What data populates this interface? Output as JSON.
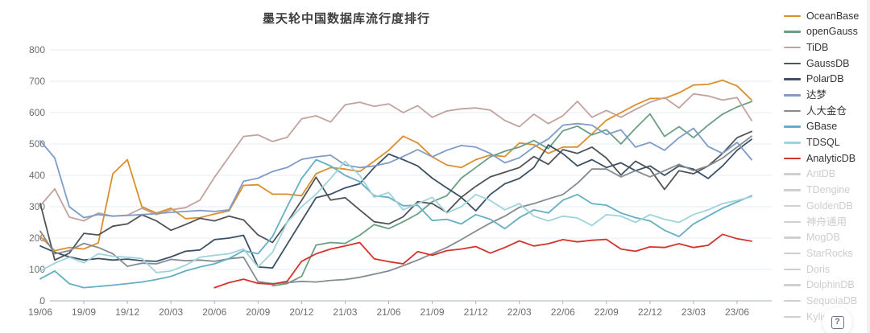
{
  "help_button": {
    "label": "?"
  },
  "legend": {
    "items": [
      {
        "label": "OceanBase",
        "color": "#D98F2D",
        "active": true
      },
      {
        "label": "openGauss",
        "color": "#69A083",
        "active": true
      },
      {
        "label": "TiDB",
        "color": "#C2A29E",
        "active": true
      },
      {
        "label": "GaussDB",
        "color": "#505457",
        "active": true
      },
      {
        "label": "PolarDB",
        "color": "#3C5066",
        "active": true
      },
      {
        "label": "达梦",
        "color": "#7E9CC7",
        "active": true
      },
      {
        "label": "人大金仓",
        "color": "#848B92",
        "active": true
      },
      {
        "label": "GBase",
        "color": "#66AEC2",
        "active": true
      },
      {
        "label": "TDSQL",
        "color": "#9FD3DC",
        "active": true
      },
      {
        "label": "AnalyticDB",
        "color": "#D3342B",
        "active": true
      },
      {
        "label": "AntDB",
        "color": "#CFCFCF",
        "active": false
      },
      {
        "label": "TDengine",
        "color": "#CFCFCF",
        "active": false
      },
      {
        "label": "GoldenDB",
        "color": "#CFCFCF",
        "active": false
      },
      {
        "label": "神舟通用",
        "color": "#CFCFCF",
        "active": false
      },
      {
        "label": "MogDB",
        "color": "#CFCFCF",
        "active": false
      },
      {
        "label": "StarRocks",
        "color": "#CFCFCF",
        "active": false
      },
      {
        "label": "Doris",
        "color": "#CFCFCF",
        "active": false
      },
      {
        "label": "DolphinDB",
        "color": "#CFCFCF",
        "active": false
      },
      {
        "label": "SequoiaDB",
        "color": "#CFCFCF",
        "active": false
      },
      {
        "label": "Kyligence",
        "color": "#CFCFCF",
        "active": false
      }
    ]
  },
  "chart_data": {
    "type": "line",
    "title": "墨天轮中国数据库流行度排行",
    "xlabel": "",
    "ylabel": "",
    "ylim": [
      0,
      800
    ],
    "y_ticks": [
      0,
      100,
      200,
      300,
      400,
      500,
      600,
      700,
      800
    ],
    "grid": true,
    "legend_position": "right",
    "x": [
      "19/06",
      "19/07",
      "19/08",
      "19/09",
      "19/10",
      "19/11",
      "19/12",
      "20/01",
      "20/02",
      "20/03",
      "20/04",
      "20/05",
      "20/06",
      "20/07",
      "20/08",
      "20/09",
      "20/10",
      "20/11",
      "20/12",
      "21/01",
      "21/02",
      "21/03",
      "21/04",
      "21/05",
      "21/06",
      "21/07",
      "21/08",
      "21/09",
      "21/10",
      "21/11",
      "21/12",
      "22/01",
      "22/02",
      "22/03",
      "22/04",
      "22/05",
      "22/06",
      "22/07",
      "22/08",
      "22/09",
      "22/10",
      "22/11",
      "22/12",
      "23/01",
      "23/02",
      "23/03",
      "23/04",
      "23/05",
      "23/06",
      "23/07"
    ],
    "x_tick_labels": [
      "19/06",
      "19/09",
      "19/12",
      "20/03",
      "20/06",
      "20/09",
      "20/12",
      "21/03",
      "21/06",
      "21/09",
      "21/12",
      "22/03",
      "22/06",
      "22/09",
      "22/12",
      "23/03",
      "23/06"
    ],
    "series": [
      {
        "name": "OceanBase",
        "color": "#D98F2D",
        "values": [
          205,
          160,
          170,
          165,
          185,
          405,
          450,
          300,
          280,
          295,
          262,
          265,
          277,
          287,
          368,
          370,
          340,
          340,
          335,
          405,
          425,
          420,
          412,
          445,
          480,
          525,
          503,
          459,
          433,
          425,
          450,
          465,
          460,
          503,
          498,
          470,
          490,
          490,
          532,
          576,
          600,
          625,
          645,
          645,
          663,
          688,
          690,
          703,
          685,
          640
        ]
      },
      {
        "name": "openGauss",
        "color": "#69A083",
        "values": [
          null,
          null,
          null,
          null,
          null,
          null,
          null,
          null,
          null,
          null,
          null,
          null,
          null,
          null,
          null,
          null,
          48,
          55,
          78,
          178,
          186,
          183,
          209,
          243,
          230,
          252,
          277,
          316,
          335,
          391,
          425,
          459,
          477,
          490,
          511,
          485,
          542,
          557,
          529,
          545,
          500,
          550,
          596,
          524,
          555,
          520,
          560,
          595,
          618,
          635
        ]
      },
      {
        "name": "TiDB",
        "color": "#C2A29E",
        "values": [
          303,
          357,
          267,
          255,
          280,
          270,
          273,
          295,
          275,
          290,
          297,
          321,
          394,
          459,
          524,
          529,
          508,
          521,
          580,
          590,
          570,
          625,
          633,
          620,
          628,
          600,
          622,
          585,
          605,
          612,
          615,
          608,
          575,
          555,
          595,
          565,
          590,
          636,
          585,
          607,
          585,
          610,
          633,
          648,
          615,
          660,
          653,
          640,
          648,
          575
        ]
      },
      {
        "name": "GaussDB",
        "color": "#505457",
        "values": [
          310,
          130,
          152,
          215,
          210,
          238,
          245,
          274,
          255,
          225,
          243,
          263,
          255,
          270,
          258,
          210,
          186,
          250,
          320,
          394,
          321,
          329,
          290,
          252,
          245,
          268,
          316,
          310,
          282,
          330,
          365,
          395,
          410,
          425,
          460,
          435,
          482,
          470,
          490,
          455,
          401,
          445,
          420,
          355,
          415,
          405,
          430,
          470,
          520,
          540
        ]
      },
      {
        "name": "PolarDB",
        "color": "#3C5066",
        "values": [
          175,
          155,
          140,
          130,
          135,
          130,
          133,
          128,
          126,
          140,
          158,
          162,
          195,
          200,
          209,
          108,
          105,
          180,
          255,
          329,
          340,
          360,
          373,
          425,
          468,
          450,
          430,
          391,
          360,
          330,
          287,
          339,
          373,
          390,
          425,
          497,
          469,
          430,
          450,
          425,
          440,
          415,
          430,
          400,
          430,
          420,
          390,
          430,
          480,
          515
        ]
      },
      {
        "name": "达梦",
        "color": "#7E9CC7",
        "values": [
          510,
          455,
          300,
          265,
          275,
          270,
          272,
          275,
          278,
          282,
          285,
          288,
          285,
          290,
          381,
          391,
          412,
          425,
          451,
          459,
          464,
          433,
          425,
          430,
          440,
          460,
          482,
          459,
          480,
          495,
          490,
          470,
          440,
          456,
          490,
          516,
          560,
          565,
          560,
          530,
          545,
          490,
          505,
          480,
          520,
          550,
          492,
          470,
          505,
          450
        ]
      },
      {
        "name": "人大金仓",
        "color": "#848B92",
        "values": [
          222,
          150,
          160,
          183,
          170,
          150,
          110,
          120,
          118,
          132,
          128,
          130,
          126,
          134,
          139,
          61,
          55,
          58,
          62,
          60,
          65,
          68,
          75,
          85,
          95,
          112,
          130,
          150,
          170,
          195,
          222,
          248,
          270,
          298,
          310,
          325,
          339,
          375,
          420,
          420,
          395,
          415,
          395,
          415,
          435,
          415,
          430,
          455,
          490,
          525
        ]
      },
      {
        "name": "GBase",
        "color": "#66AEC2",
        "values": [
          70,
          95,
          55,
          42,
          46,
          50,
          55,
          60,
          68,
          78,
          95,
          108,
          118,
          135,
          160,
          150,
          205,
          300,
          390,
          450,
          430,
          400,
          380,
          335,
          330,
          303,
          305,
          256,
          260,
          245,
          275,
          260,
          230,
          265,
          290,
          280,
          321,
          339,
          310,
          305,
          280,
          265,
          255,
          225,
          205,
          245,
          270,
          295,
          315,
          335
        ]
      },
      {
        "name": "TDSQL",
        "color": "#9FD3DC",
        "values": [
          95,
          120,
          139,
          121,
          150,
          142,
          139,
          135,
          90,
          95,
          113,
          139,
          145,
          150,
          165,
          108,
          155,
          250,
          300,
          340,
          390,
          445,
          400,
          330,
          345,
          290,
          310,
          330,
          280,
          300,
          339,
          320,
          290,
          310,
          270,
          255,
          270,
          264,
          240,
          275,
          270,
          250,
          275,
          260,
          250,
          275,
          290,
          310,
          320,
          332
        ]
      },
      {
        "name": "AnalyticDB",
        "color": "#D3342B",
        "values": [
          null,
          null,
          null,
          null,
          null,
          null,
          null,
          null,
          null,
          null,
          null,
          null,
          42,
          58,
          69,
          56,
          53,
          62,
          126,
          150,
          165,
          175,
          186,
          134,
          125,
          118,
          157,
          145,
          160,
          165,
          173,
          152,
          170,
          191,
          175,
          182,
          195,
          188,
          193,
          196,
          165,
          158,
          172,
          170,
          182,
          170,
          177,
          212,
          198,
          190
        ]
      }
    ],
    "axis_colors": {
      "grid": "#E5ECF3",
      "axis_line": "#AAB2BA",
      "tick_label": "#6E6E6E"
    }
  }
}
